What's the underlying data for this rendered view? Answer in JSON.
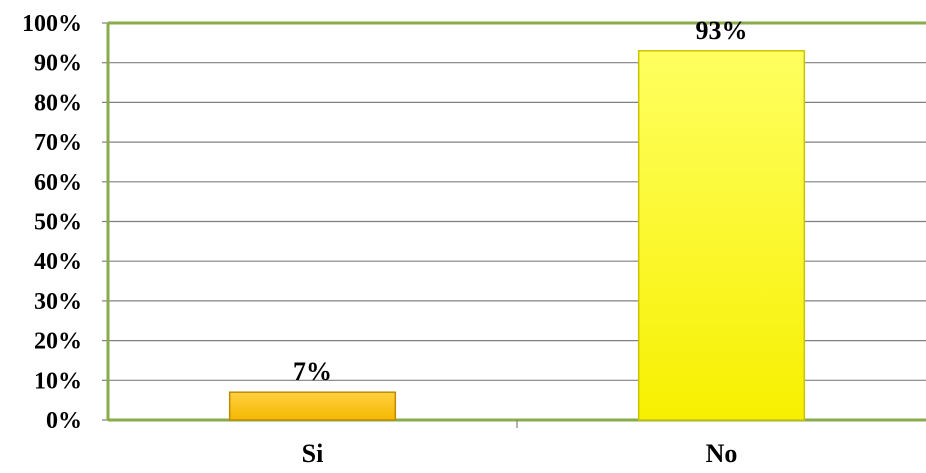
{
  "chart_data": {
    "type": "bar",
    "title": "",
    "xlabel": "",
    "ylabel": "",
    "categories": [
      "Si",
      "No"
    ],
    "values": [
      7,
      93
    ],
    "data_labels": [
      "7%",
      "93%"
    ],
    "ylim": [
      0,
      100
    ],
    "yticks": [
      0,
      10,
      20,
      30,
      40,
      50,
      60,
      70,
      80,
      90,
      100
    ],
    "ytick_labels": [
      "0%",
      "10%",
      "20%",
      "30%",
      "40%",
      "50%",
      "60%",
      "70%",
      "80%",
      "90%",
      "100%"
    ],
    "grid": true,
    "legend": "none",
    "colors": {
      "bars": [
        "#f5b800",
        "#f7f000"
      ],
      "bar_light": [
        "#ffd040",
        "#ffff60"
      ],
      "bar_edge": [
        "#c08a00",
        "#c8c400"
      ],
      "axis": "#8aab4a",
      "gridline": "#808080"
    }
  }
}
